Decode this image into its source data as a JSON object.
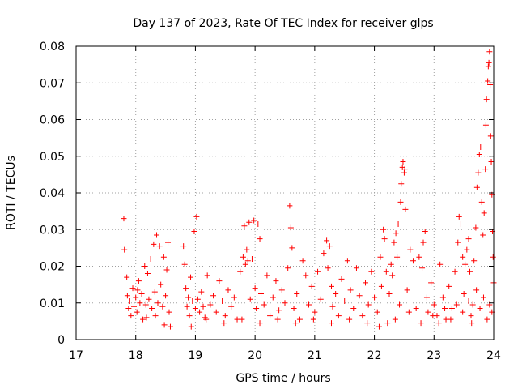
{
  "chart_data": {
    "type": "scatter",
    "title": "Day 137 of 2023, Rate Of TEC Index for receiver glps",
    "xlabel": "GPS time / hours",
    "ylabel": "ROTI / TECUs",
    "xlim": [
      17,
      24
    ],
    "ylim": [
      0,
      0.08
    ],
    "xticks": [
      17,
      18,
      19,
      20,
      21,
      22,
      23,
      24
    ],
    "xtick_labels": [
      "17",
      "18",
      "19",
      "20",
      "21",
      "22",
      "23",
      "24"
    ],
    "yticks": [
      0,
      0.01,
      0.02,
      0.03,
      0.04,
      0.05,
      0.06,
      0.07,
      0.08
    ],
    "ytick_labels": [
      "0",
      "0.01",
      "0.02",
      "0.03",
      "0.04",
      "0.05",
      "0.06",
      "0.07",
      "0.08"
    ],
    "grid": true,
    "marker": "+",
    "marker_color": "#ff0000",
    "series": [
      {
        "name": "ROTI",
        "points": [
          [
            17.8,
            0.033
          ],
          [
            17.81,
            0.0245
          ],
          [
            17.85,
            0.017
          ],
          [
            17.86,
            0.012
          ],
          [
            17.88,
            0.0085
          ],
          [
            17.9,
            0.0105
          ],
          [
            17.92,
            0.0065
          ],
          [
            17.95,
            0.014
          ],
          [
            17.97,
            0.009
          ],
          [
            18.0,
            0.0115
          ],
          [
            18.02,
            0.0075
          ],
          [
            18.05,
            0.016
          ],
          [
            18.07,
            0.01
          ],
          [
            18.1,
            0.0125
          ],
          [
            18.12,
            0.0055
          ],
          [
            18.15,
            0.02
          ],
          [
            18.17,
            0.0095
          ],
          [
            18.2,
            0.018
          ],
          [
            18.22,
            0.011
          ],
          [
            18.25,
            0.022
          ],
          [
            18.27,
            0.0085
          ],
          [
            18.3,
            0.026
          ],
          [
            18.32,
            0.013
          ],
          [
            18.35,
            0.0285
          ],
          [
            18.37,
            0.01
          ],
          [
            18.4,
            0.0255
          ],
          [
            18.42,
            0.015
          ],
          [
            18.45,
            0.009
          ],
          [
            18.47,
            0.0225
          ],
          [
            18.5,
            0.012
          ],
          [
            18.52,
            0.019
          ],
          [
            18.54,
            0.0265
          ],
          [
            18.56,
            0.0075
          ],
          [
            18.48,
            0.004
          ],
          [
            18.33,
            0.0065
          ],
          [
            18.18,
            0.006
          ],
          [
            18.03,
            0.0135
          ],
          [
            18.8,
            0.0255
          ],
          [
            18.82,
            0.0205
          ],
          [
            18.84,
            0.014
          ],
          [
            18.86,
            0.009
          ],
          [
            18.88,
            0.0115
          ],
          [
            18.9,
            0.0065
          ],
          [
            18.92,
            0.017
          ],
          [
            18.95,
            0.0105
          ],
          [
            18.98,
            0.0295
          ],
          [
            19.0,
            0.0085
          ],
          [
            19.02,
            0.0335
          ],
          [
            19.04,
            0.011
          ],
          [
            19.07,
            0.0075
          ],
          [
            19.1,
            0.013
          ],
          [
            19.13,
            0.009
          ],
          [
            19.16,
            0.006
          ],
          [
            19.2,
            0.0175
          ],
          [
            19.25,
            0.0095
          ],
          [
            19.3,
            0.012
          ],
          [
            19.35,
            0.0075
          ],
          [
            19.4,
            0.016
          ],
          [
            19.45,
            0.0105
          ],
          [
            19.5,
            0.0065
          ],
          [
            19.55,
            0.0135
          ],
          [
            19.6,
            0.009
          ],
          [
            19.65,
            0.0115
          ],
          [
            19.7,
            0.0055
          ],
          [
            19.75,
            0.0185
          ],
          [
            19.8,
            0.0225
          ],
          [
            19.82,
            0.031
          ],
          [
            19.84,
            0.0205
          ],
          [
            19.86,
            0.0245
          ],
          [
            19.88,
            0.0215
          ],
          [
            19.9,
            0.032
          ],
          [
            19.92,
            0.011
          ],
          [
            19.95,
            0.022
          ],
          [
            19.98,
            0.0325
          ],
          [
            20.0,
            0.014
          ],
          [
            20.02,
            0.0085
          ],
          [
            20.05,
            0.0315
          ],
          [
            20.08,
            0.0275
          ],
          [
            20.1,
            0.0125
          ],
          [
            20.15,
            0.0095
          ],
          [
            20.2,
            0.0175
          ],
          [
            20.25,
            0.0065
          ],
          [
            20.3,
            0.0115
          ],
          [
            20.35,
            0.016
          ],
          [
            20.4,
            0.008
          ],
          [
            20.45,
            0.0135
          ],
          [
            20.5,
            0.01
          ],
          [
            20.55,
            0.0195
          ],
          [
            20.58,
            0.0365
          ],
          [
            20.6,
            0.0305
          ],
          [
            20.62,
            0.025
          ],
          [
            20.65,
            0.0085
          ],
          [
            20.7,
            0.0125
          ],
          [
            20.75,
            0.0055
          ],
          [
            20.8,
            0.0215
          ],
          [
            20.85,
            0.0175
          ],
          [
            20.9,
            0.0095
          ],
          [
            20.95,
            0.0145
          ],
          [
            21.0,
            0.0075
          ],
          [
            21.05,
            0.0185
          ],
          [
            21.1,
            0.011
          ],
          [
            21.15,
            0.0235
          ],
          [
            21.2,
            0.027
          ],
          [
            21.22,
            0.0195
          ],
          [
            21.25,
            0.0255
          ],
          [
            21.28,
            0.0145
          ],
          [
            21.3,
            0.009
          ],
          [
            21.35,
            0.0125
          ],
          [
            21.4,
            0.0065
          ],
          [
            21.45,
            0.0165
          ],
          [
            21.5,
            0.0105
          ],
          [
            21.55,
            0.0215
          ],
          [
            21.6,
            0.0135
          ],
          [
            21.65,
            0.0085
          ],
          [
            21.7,
            0.0195
          ],
          [
            21.75,
            0.012
          ],
          [
            21.8,
            0.0065
          ],
          [
            21.85,
            0.0155
          ],
          [
            21.9,
            0.0095
          ],
          [
            21.95,
            0.0185
          ],
          [
            22.0,
            0.0115
          ],
          [
            22.05,
            0.0075
          ],
          [
            22.1,
            0.0225
          ],
          [
            22.12,
            0.0145
          ],
          [
            22.15,
            0.03
          ],
          [
            22.17,
            0.0275
          ],
          [
            22.2,
            0.0185
          ],
          [
            22.22,
            0.0045
          ],
          [
            22.25,
            0.0125
          ],
          [
            22.28,
            0.0205
          ],
          [
            22.3,
            0.0175
          ],
          [
            22.33,
            0.0265
          ],
          [
            22.36,
            0.029
          ],
          [
            22.38,
            0.0225
          ],
          [
            22.4,
            0.0315
          ],
          [
            22.42,
            0.0095
          ],
          [
            22.44,
            0.0375
          ],
          [
            22.45,
            0.0425
          ],
          [
            22.47,
            0.047
          ],
          [
            22.48,
            0.0485
          ],
          [
            22.5,
            0.0455
          ],
          [
            22.51,
            0.0465
          ],
          [
            22.52,
            0.0355
          ],
          [
            22.55,
            0.0135
          ],
          [
            22.6,
            0.0245
          ],
          [
            22.65,
            0.0215
          ],
          [
            22.7,
            0.0085
          ],
          [
            22.75,
            0.0225
          ],
          [
            22.8,
            0.0195
          ],
          [
            22.82,
            0.0265
          ],
          [
            22.85,
            0.0295
          ],
          [
            22.88,
            0.0115
          ],
          [
            22.9,
            0.0075
          ],
          [
            22.95,
            0.0155
          ],
          [
            23.0,
            0.0095
          ],
          [
            23.05,
            0.0065
          ],
          [
            23.1,
            0.0205
          ],
          [
            23.15,
            0.0115
          ],
          [
            23.2,
            0.0055
          ],
          [
            23.25,
            0.0145
          ],
          [
            23.3,
            0.0085
          ],
          [
            23.35,
            0.0185
          ],
          [
            23.4,
            0.0265
          ],
          [
            23.42,
            0.0335
          ],
          [
            23.45,
            0.0315
          ],
          [
            23.48,
            0.0225
          ],
          [
            23.5,
            0.0125
          ],
          [
            23.52,
            0.0205
          ],
          [
            23.55,
            0.0245
          ],
          [
            23.58,
            0.0275
          ],
          [
            23.6,
            0.0185
          ],
          [
            23.62,
            0.0065
          ],
          [
            23.65,
            0.0095
          ],
          [
            23.67,
            0.0215
          ],
          [
            23.7,
            0.0305
          ],
          [
            23.72,
            0.0415
          ],
          [
            23.74,
            0.0455
          ],
          [
            23.76,
            0.0505
          ],
          [
            23.78,
            0.0525
          ],
          [
            23.8,
            0.0375
          ],
          [
            23.82,
            0.0285
          ],
          [
            23.84,
            0.0345
          ],
          [
            23.86,
            0.0465
          ],
          [
            23.87,
            0.0585
          ],
          [
            23.88,
            0.0655
          ],
          [
            23.9,
            0.0705
          ],
          [
            23.91,
            0.0745
          ],
          [
            23.92,
            0.0755
          ],
          [
            23.93,
            0.0785
          ],
          [
            23.94,
            0.0695
          ],
          [
            23.95,
            0.0555
          ],
          [
            23.96,
            0.0485
          ],
          [
            23.97,
            0.0395
          ],
          [
            23.98,
            0.0295
          ],
          [
            23.99,
            0.0225
          ],
          [
            24.0,
            0.0155
          ],
          [
            23.97,
            0.0075
          ],
          [
            23.93,
            0.0095
          ],
          [
            23.89,
            0.0055
          ],
          [
            23.83,
            0.0115
          ],
          [
            23.77,
            0.0085
          ],
          [
            23.71,
            0.0135
          ],
          [
            23.63,
            0.0045
          ],
          [
            23.58,
            0.0105
          ],
          [
            23.48,
            0.0075
          ],
          [
            23.38,
            0.0095
          ],
          [
            23.28,
            0.0055
          ],
          [
            23.18,
            0.0085
          ],
          [
            23.08,
            0.0045
          ],
          [
            22.98,
            0.0065
          ],
          [
            22.78,
            0.0045
          ],
          [
            22.58,
            0.0075
          ],
          [
            22.35,
            0.0055
          ],
          [
            22.08,
            0.0035
          ],
          [
            21.88,
            0.0045
          ],
          [
            21.58,
            0.0055
          ],
          [
            21.28,
            0.0045
          ],
          [
            20.98,
            0.0055
          ],
          [
            20.68,
            0.0045
          ],
          [
            20.38,
            0.0055
          ],
          [
            20.08,
            0.0045
          ],
          [
            19.78,
            0.0055
          ],
          [
            19.48,
            0.0045
          ],
          [
            19.18,
            0.0055
          ],
          [
            18.93,
            0.0035
          ],
          [
            18.58,
            0.0035
          ]
        ]
      }
    ]
  }
}
